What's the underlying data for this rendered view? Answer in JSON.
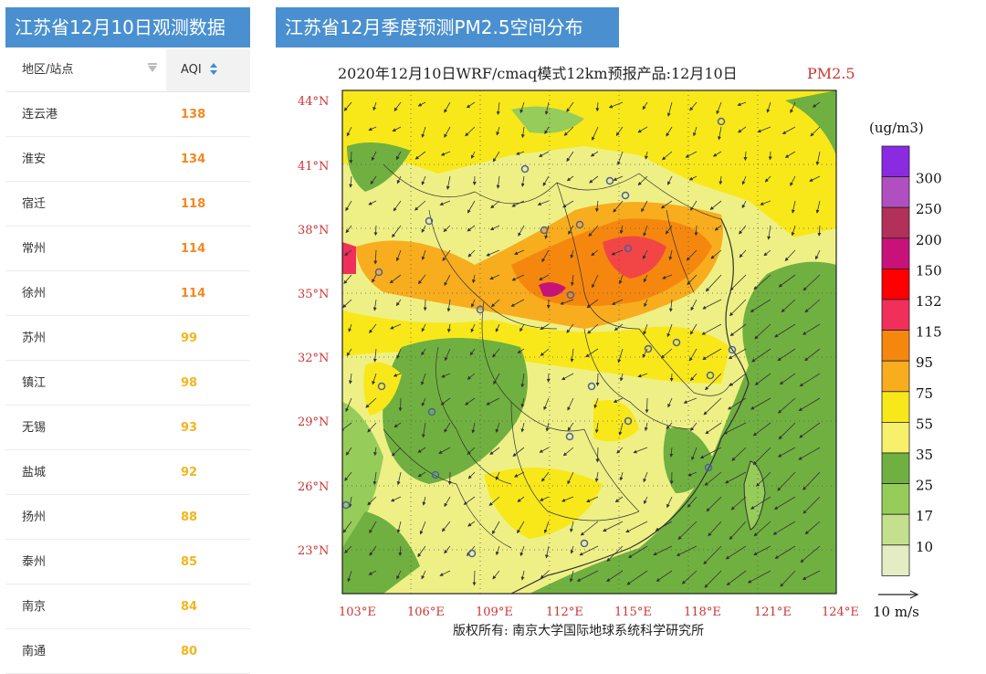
{
  "left_panel": {
    "title": "江苏省12月10日观测数据",
    "columns": {
      "site": "地区/站点",
      "aqi": "AQI"
    },
    "rows": [
      {
        "site": "连云港",
        "aqi": "138",
        "color": "#f5871f"
      },
      {
        "site": "淮安",
        "aqi": "134",
        "color": "#f5871f"
      },
      {
        "site": "宿迁",
        "aqi": "118",
        "color": "#f5871f"
      },
      {
        "site": "常州",
        "aqi": "114",
        "color": "#f5871f"
      },
      {
        "site": "徐州",
        "aqi": "114",
        "color": "#f5871f"
      },
      {
        "site": "苏州",
        "aqi": "99",
        "color": "#f3b51d"
      },
      {
        "site": "镇江",
        "aqi": "98",
        "color": "#f3b51d"
      },
      {
        "site": "无锡",
        "aqi": "93",
        "color": "#f3b51d"
      },
      {
        "site": "盐城",
        "aqi": "92",
        "color": "#f3b51d"
      },
      {
        "site": "扬州",
        "aqi": "88",
        "color": "#f3b51d"
      },
      {
        "site": "泰州",
        "aqi": "85",
        "color": "#f3b51d"
      },
      {
        "site": "南京",
        "aqi": "84",
        "color": "#f3b51d"
      },
      {
        "site": "南通",
        "aqi": "80",
        "color": "#f3b51d"
      }
    ],
    "tab_color": "#4a90d0",
    "sort_icon": "sort-arrows-icon",
    "filter_icon": "filter-icon"
  },
  "right_panel": {
    "title": "江苏省12月季度预测PM2.5空间分布",
    "map_title": "2020年12月10日WRF/cmaq模式12km预报产品:12月10日",
    "map_title_pollutant": "PM2.5",
    "lat_labels": [
      "44°N",
      "41°N",
      "38°N",
      "35°N",
      "32°N",
      "29°N",
      "26°N",
      "23°N"
    ],
    "lon_labels": [
      "103°E",
      "106°E",
      "109°E",
      "112°E",
      "115°E",
      "118°E",
      "121°E",
      "124°E"
    ],
    "colorbar_unit": "(ug/m3)",
    "colorbar_labels": [
      "300",
      "250",
      "200",
      "150",
      "132",
      "115",
      "95",
      "75",
      "55",
      "35",
      "25",
      "17",
      "10"
    ],
    "colorbar_colors": [
      "#8a2be2",
      "#b04fc0",
      "#b2305a",
      "#c8127a",
      "#ff0000",
      "#f0305a",
      "#f5870f",
      "#f8ad1e",
      "#f8e81a",
      "#f6f06a",
      "#70b040",
      "#96cc5a",
      "#c4e08e",
      "#e4ecc4"
    ],
    "wind_scale": "10 m/s",
    "credit": "版权所有: 南京大学国际地球系统科学研究所"
  }
}
